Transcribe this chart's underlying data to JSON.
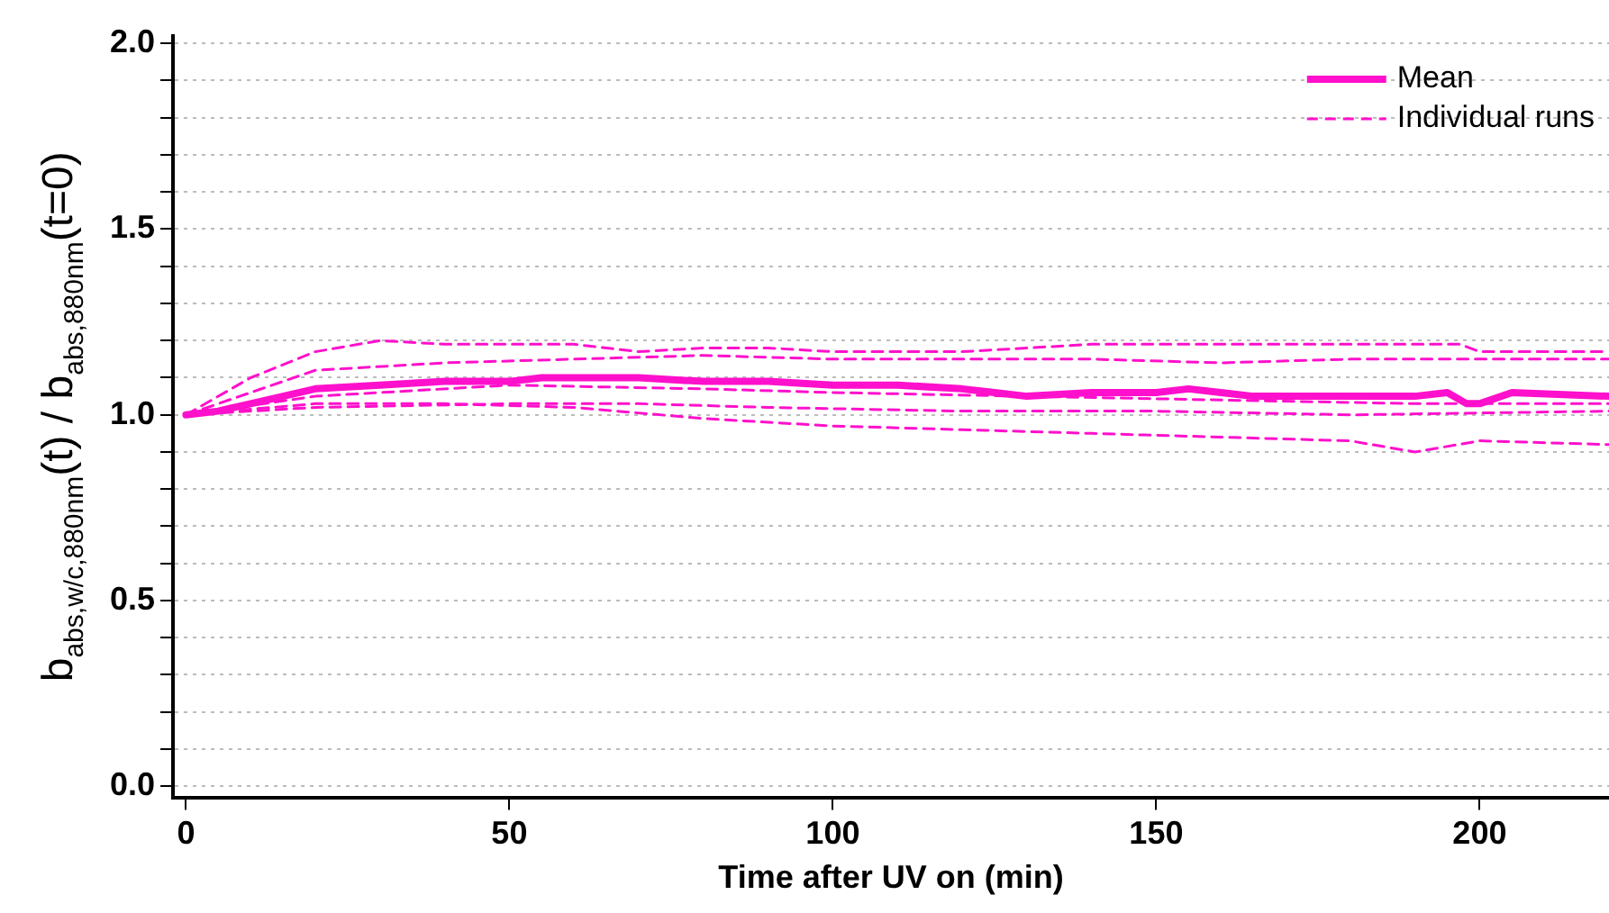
{
  "chart_data": {
    "type": "line",
    "xlabel": "Time after UV on (min)",
    "ylabel": "b$_{abs,w/c,880nm}$(t) / b$_{abs,880nm}$(t=0)",
    "xlim": [
      -2,
      220
    ],
    "ylim": [
      -0.03,
      2.02
    ],
    "xticks": [
      0,
      50,
      100,
      150,
      200
    ],
    "yticks": [
      {
        "value": 0,
        "label": "0.0"
      },
      {
        "value": 0.1,
        "label": null
      },
      {
        "value": 0.2,
        "label": null
      },
      {
        "value": 0.3,
        "label": null
      },
      {
        "value": 0.4,
        "label": null
      },
      {
        "value": 0.5,
        "label": "0.5"
      },
      {
        "value": 0.6,
        "label": null
      },
      {
        "value": 0.7,
        "label": null
      },
      {
        "value": 0.8,
        "label": null
      },
      {
        "value": 0.9,
        "label": null
      },
      {
        "value": 1,
        "label": "1.0"
      },
      {
        "value": 1.1,
        "label": null
      },
      {
        "value": 1.2,
        "label": null
      },
      {
        "value": 1.3,
        "label": null
      },
      {
        "value": 1.4,
        "label": null
      },
      {
        "value": 1.5,
        "label": "1.5"
      },
      {
        "value": 1.6,
        "label": null
      },
      {
        "value": 1.7,
        "label": null
      },
      {
        "value": 1.8,
        "label": null
      },
      {
        "value": 1.9,
        "label": null
      },
      {
        "value": 2,
        "label": "2.0"
      }
    ],
    "grid": "y",
    "legend": "top right",
    "marker": "none",
    "series": [
      {
        "name": "Mean",
        "color": "#ff10cc",
        "line_style": "solid",
        "x": [
          0,
          5,
          10,
          20,
          30,
          40,
          50,
          55,
          60,
          70,
          80,
          90,
          100,
          110,
          120,
          125,
          130,
          140,
          150,
          155,
          160,
          165,
          170,
          180,
          190,
          195,
          198,
          200,
          205,
          220
        ],
        "values": [
          1.0,
          1.01,
          1.03,
          1.07,
          1.08,
          1.09,
          1.09,
          1.1,
          1.1,
          1.1,
          1.09,
          1.09,
          1.08,
          1.08,
          1.07,
          1.06,
          1.05,
          1.06,
          1.06,
          1.07,
          1.06,
          1.05,
          1.05,
          1.05,
          1.05,
          1.06,
          1.03,
          1.03,
          1.06,
          1.05
        ]
      },
      {
        "name": "Individual runs",
        "color": "#ff10cc",
        "line_style": "dashed",
        "x": [
          0,
          10,
          20,
          30,
          40,
          50,
          60,
          70,
          80,
          90,
          100,
          120,
          140,
          160,
          180,
          197,
          200,
          220
        ],
        "values": [
          1.0,
          1.1,
          1.17,
          1.2,
          1.19,
          1.19,
          1.19,
          1.17,
          1.18,
          1.18,
          1.17,
          1.17,
          1.19,
          1.19,
          1.19,
          1.19,
          1.17,
          1.17
        ]
      },
      {
        "color": "#ff10cc",
        "line_style": "dashed",
        "x": [
          0,
          20,
          40,
          60,
          80,
          100,
          120,
          140,
          160,
          180,
          200,
          220
        ],
        "values": [
          1.0,
          1.12,
          1.14,
          1.15,
          1.16,
          1.15,
          1.15,
          1.15,
          1.14,
          1.15,
          1.15,
          1.15
        ]
      },
      {
        "color": "#ff10cc",
        "line_style": "dashed",
        "x": [
          0,
          20,
          50,
          80,
          100,
          130,
          160,
          190,
          220
        ],
        "values": [
          1.0,
          1.05,
          1.08,
          1.07,
          1.06,
          1.05,
          1.04,
          1.03,
          1.03
        ]
      },
      {
        "color": "#ff10cc",
        "line_style": "dashed",
        "x": [
          0,
          20,
          40,
          60,
          80,
          100,
          120,
          140,
          160,
          180,
          190,
          200,
          220
        ],
        "values": [
          1.0,
          1.03,
          1.03,
          1.02,
          0.99,
          0.97,
          0.96,
          0.95,
          0.94,
          0.93,
          0.9,
          0.93,
          0.92
        ]
      },
      {
        "color": "#ff10cc",
        "line_style": "dashed",
        "x": [
          0,
          20,
          50,
          70,
          90,
          120,
          150,
          180,
          220
        ],
        "values": [
          1.0,
          1.02,
          1.03,
          1.03,
          1.02,
          1.01,
          1.01,
          1.0,
          1.01
        ]
      }
    ]
  }
}
